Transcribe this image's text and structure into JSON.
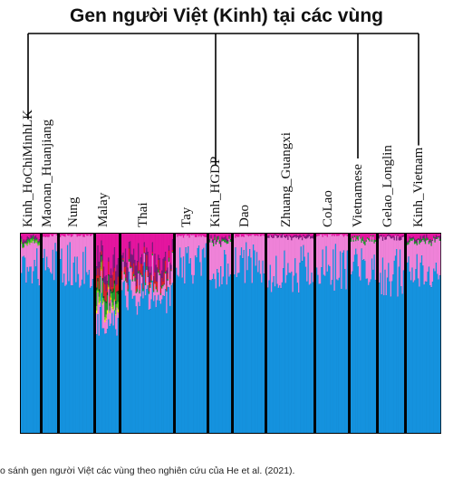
{
  "title": "Gen người Việt (Kinh) tại các vùng",
  "caption": "o sánh gen người Việt các vùng theo nghiên cứu của He et al. (2021).",
  "colors": {
    "blue": "#1592de",
    "pink": "#ef82d8",
    "magenta": "#e4159f",
    "purple": "#7a1a7a",
    "red": "#d9202b",
    "green": "#1e9a2e",
    "lime": "#6cd326",
    "yellow": "#f5f51a",
    "darkgreen": "#124d1a",
    "dark": "#2a1a3a"
  },
  "chart_data": {
    "type": "bar",
    "subtype": "stacked-admixture",
    "y_range": [
      0,
      1
    ],
    "components": [
      "blue",
      "pink",
      "magenta",
      "purple",
      "red",
      "green",
      "lime",
      "yellow",
      "darkgreen"
    ],
    "highlighted_populations": [
      "Kinh_HoChiMinhLK",
      "Kinh_HGDP",
      "Vietnamese",
      "Kinh_Vietnam"
    ],
    "categories": [
      "Kinh_HoChiMinhLK",
      "Maonan_Huanjiang",
      "Nung",
      "Malay",
      "Thai",
      "Tay",
      "Kinh_HGDP",
      "Dao",
      "Zhuang_Guangxi",
      "CoLao",
      "Vietnamese",
      "Gelao_Longlin",
      "Kinh_Vietnam"
    ],
    "mean_composition": [
      {
        "blue": 0.83,
        "pink": 0.12,
        "magenta": 0.02,
        "purple": 0.01,
        "red": 0.0,
        "green": 0.01,
        "lime": 0.01,
        "yellow": 0.0,
        "darkgreen": 0.0
      },
      {
        "blue": 0.86,
        "pink": 0.13,
        "magenta": 0.01,
        "purple": 0.0,
        "red": 0.0,
        "green": 0.0,
        "lime": 0.0,
        "yellow": 0.0,
        "darkgreen": 0.0
      },
      {
        "blue": 0.84,
        "pink": 0.15,
        "magenta": 0.01,
        "purple": 0.0,
        "red": 0.0,
        "green": 0.0,
        "lime": 0.0,
        "yellow": 0.0,
        "darkgreen": 0.0
      },
      {
        "blue": 0.57,
        "pink": 0.1,
        "magenta": 0.13,
        "purple": 0.06,
        "red": 0.05,
        "green": 0.05,
        "lime": 0.02,
        "yellow": 0.01,
        "darkgreen": 0.01
      },
      {
        "blue": 0.7,
        "pink": 0.08,
        "magenta": 0.12,
        "purple": 0.06,
        "red": 0.03,
        "green": 0.01,
        "lime": 0.0,
        "yellow": 0.0,
        "darkgreen": 0.0
      },
      {
        "blue": 0.85,
        "pink": 0.14,
        "magenta": 0.01,
        "purple": 0.0,
        "red": 0.0,
        "green": 0.0,
        "lime": 0.0,
        "yellow": 0.0,
        "darkgreen": 0.0
      },
      {
        "blue": 0.83,
        "pink": 0.13,
        "magenta": 0.02,
        "purple": 0.01,
        "red": 0.0,
        "green": 0.01,
        "lime": 0.0,
        "yellow": 0.0,
        "darkgreen": 0.0
      },
      {
        "blue": 0.85,
        "pink": 0.14,
        "magenta": 0.01,
        "purple": 0.0,
        "red": 0.0,
        "green": 0.0,
        "lime": 0.0,
        "yellow": 0.0,
        "darkgreen": 0.0
      },
      {
        "blue": 0.82,
        "pink": 0.16,
        "magenta": 0.01,
        "purple": 0.01,
        "red": 0.0,
        "green": 0.0,
        "lime": 0.0,
        "yellow": 0.0,
        "darkgreen": 0.0
      },
      {
        "blue": 0.83,
        "pink": 0.16,
        "magenta": 0.01,
        "purple": 0.0,
        "red": 0.0,
        "green": 0.0,
        "lime": 0.0,
        "yellow": 0.0,
        "darkgreen": 0.0
      },
      {
        "blue": 0.84,
        "pink": 0.13,
        "magenta": 0.02,
        "purple": 0.0,
        "red": 0.0,
        "green": 0.01,
        "lime": 0.0,
        "yellow": 0.0,
        "darkgreen": 0.0
      },
      {
        "blue": 0.8,
        "pink": 0.18,
        "magenta": 0.01,
        "purple": 0.01,
        "red": 0.0,
        "green": 0.0,
        "lime": 0.0,
        "yellow": 0.0,
        "darkgreen": 0.0
      },
      {
        "blue": 0.83,
        "pink": 0.13,
        "magenta": 0.02,
        "purple": 0.01,
        "red": 0.0,
        "green": 0.01,
        "lime": 0.0,
        "yellow": 0.0,
        "darkgreen": 0.0
      }
    ]
  }
}
